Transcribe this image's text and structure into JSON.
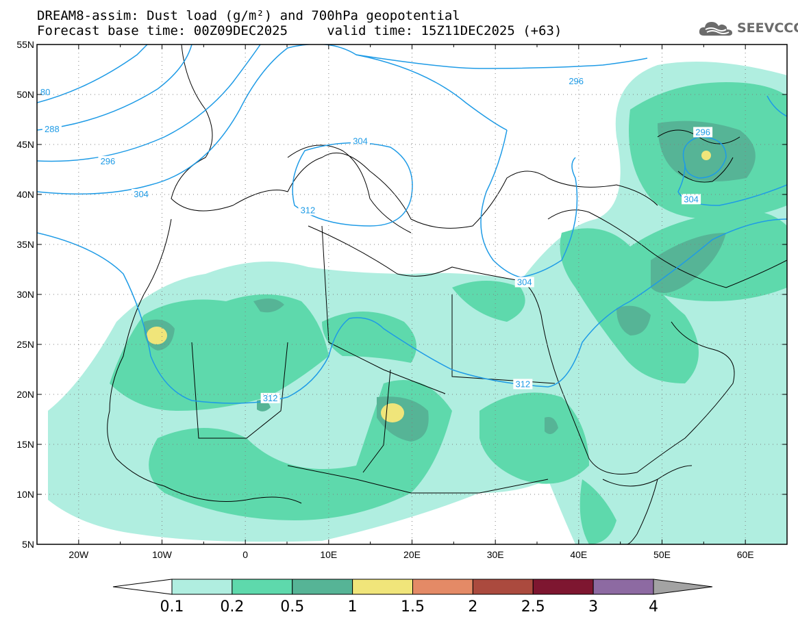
{
  "header": {
    "title_line1": "DREAM8-assim: Dust load (g/m²) and 700hPa geopotential",
    "title_line2": "Forecast base time: 00Z09DEC2025     valid time: 15Z11DEC2025 (+63)"
  },
  "logo": {
    "text": "SEEVCCC",
    "icon": "cloud-icon"
  },
  "map": {
    "lon_range": [
      -25,
      65
    ],
    "lat_range": [
      5,
      55
    ],
    "x_ticks": [
      "20W",
      "10W",
      "0",
      "10E",
      "20E",
      "30E",
      "40E",
      "50E",
      "60E"
    ],
    "x_tick_values": [
      -20,
      -10,
      0,
      10,
      20,
      30,
      40,
      50,
      60
    ],
    "y_ticks": [
      "5N",
      "10N",
      "15N",
      "20N",
      "25N",
      "30N",
      "35N",
      "40N",
      "45N",
      "50N",
      "55N"
    ],
    "y_tick_values": [
      5,
      10,
      15,
      20,
      25,
      30,
      35,
      40,
      45,
      50,
      55
    ],
    "grid": "dotted",
    "contour_labels": [
      {
        "text": "80",
        "lon": -24,
        "lat": 50.2
      },
      {
        "text": "288",
        "lon": -23.2,
        "lat": 46.5
      },
      {
        "text": "296",
        "lon": -16.5,
        "lat": 43.3
      },
      {
        "text": "304",
        "lon": -12.5,
        "lat": 40.0
      },
      {
        "text": "312",
        "lon": 7.5,
        "lat": 38.4
      },
      {
        "text": "304",
        "lon": 13.8,
        "lat": 45.3
      },
      {
        "text": "304",
        "lon": 33.5,
        "lat": 31.2
      },
      {
        "text": "312",
        "lon": 33.3,
        "lat": 21.0
      },
      {
        "text": "312",
        "lon": 3.0,
        "lat": 19.6
      },
      {
        "text": "296",
        "lon": 39.7,
        "lat": 51.3
      },
      {
        "text": "296",
        "lon": 54.9,
        "lat": 46.2
      },
      {
        "text": "304",
        "lon": 53.5,
        "lat": 39.5
      }
    ]
  },
  "colorbar": {
    "colors": [
      "#ffffff",
      "#b0eee0",
      "#5ed9ac",
      "#56b496",
      "#f0e57a",
      "#e48a66",
      "#ab4a3e",
      "#7e1630",
      "#8d6aa2",
      "#a3a3a3"
    ],
    "labels": [
      "0.1",
      "0.2",
      "0.5",
      "1",
      "1.5",
      "2",
      "2.5",
      "3",
      "4"
    ]
  }
}
